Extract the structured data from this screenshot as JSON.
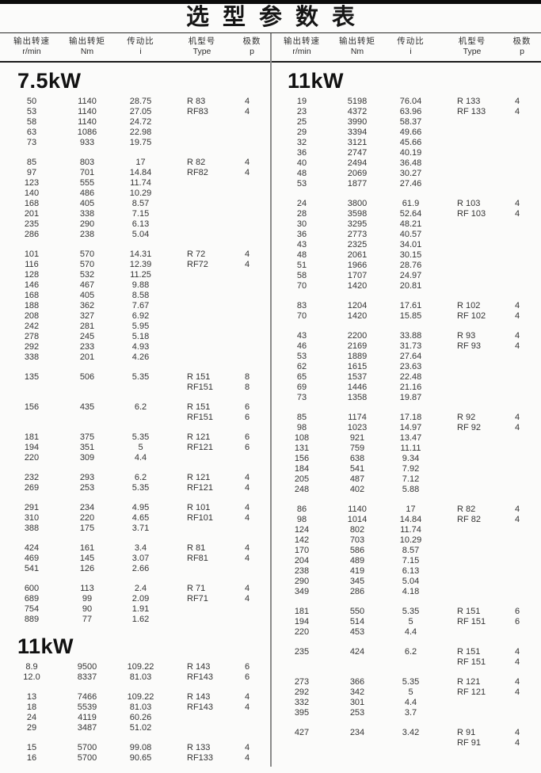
{
  "title": "选型参数表",
  "columns": [
    {
      "key": "speed",
      "label": "输出转速",
      "unit": "r/min"
    },
    {
      "key": "torque",
      "label": "输出转矩",
      "unit": "Nm"
    },
    {
      "key": "ratio",
      "label": "传动比",
      "unit": "i"
    },
    {
      "key": "type",
      "label": "机型号",
      "unit": "Type"
    },
    {
      "key": "poles",
      "label": "极数",
      "unit": "p"
    }
  ],
  "colors": {
    "line_dark": "#1a1a1a",
    "divider_grey": "#8a8a8a",
    "text": "#333333"
  },
  "left_column": {
    "sections": [
      {
        "heading": "7.5kW",
        "groups": [
          {
            "rows": [
              [
                "50",
                "1140",
                "28.75",
                "R 83",
                "4"
              ],
              [
                "53",
                "1140",
                "27.05",
                "RF83",
                "4"
              ],
              [
                "58",
                "1140",
                "24.72",
                "",
                ""
              ],
              [
                "63",
                "1086",
                "22.98",
                "",
                ""
              ],
              [
                "73",
                "933",
                "19.75",
                "",
                ""
              ]
            ]
          },
          {
            "rows": [
              [
                "85",
                "803",
                "17",
                "R 82",
                "4"
              ],
              [
                "97",
                "701",
                "14.84",
                "RF82",
                "4"
              ],
              [
                "123",
                "555",
                "11.74",
                "",
                ""
              ],
              [
                "140",
                "486",
                "10.29",
                "",
                ""
              ],
              [
                "168",
                "405",
                "8.57",
                "",
                ""
              ],
              [
                "201",
                "338",
                "7.15",
                "",
                ""
              ],
              [
                "235",
                "290",
                "6.13",
                "",
                ""
              ],
              [
                "286",
                "238",
                "5.04",
                "",
                ""
              ]
            ]
          },
          {
            "rows": [
              [
                "101",
                "570",
                "14.31",
                "R 72",
                "4"
              ],
              [
                "116",
                "570",
                "12.39",
                "RF72",
                "4"
              ],
              [
                "128",
                "532",
                "11.25",
                "",
                ""
              ],
              [
                "146",
                "467",
                "9.88",
                "",
                ""
              ],
              [
                "168",
                "405",
                "8.58",
                "",
                ""
              ],
              [
                "188",
                "362",
                "7.67",
                "",
                ""
              ],
              [
                "208",
                "327",
                "6.92",
                "",
                ""
              ],
              [
                "242",
                "281",
                "5.95",
                "",
                ""
              ],
              [
                "278",
                "245",
                "5.18",
                "",
                ""
              ],
              [
                "292",
                "233",
                "4.93",
                "",
                ""
              ],
              [
                "338",
                "201",
                "4.26",
                "",
                ""
              ]
            ]
          },
          {
            "rows": [
              [
                "135",
                "506",
                "5.35",
                "R 151",
                "8"
              ],
              [
                "",
                "",
                "",
                "RF151",
                "8"
              ]
            ]
          },
          {
            "rows": [
              [
                "156",
                "435",
                "6.2",
                "R 151",
                "6"
              ],
              [
                "",
                "",
                "",
                "RF151",
                "6"
              ]
            ]
          },
          {
            "rows": [
              [
                "181",
                "375",
                "5.35",
                "R 121",
                "6"
              ],
              [
                "194",
                "351",
                "5",
                "RF121",
                "6"
              ],
              [
                "220",
                "309",
                "4.4",
                "",
                ""
              ]
            ]
          },
          {
            "rows": [
              [
                "232",
                "293",
                "6.2",
                "R 121",
                "4"
              ],
              [
                "269",
                "253",
                "5.35",
                "RF121",
                "4"
              ]
            ]
          },
          {
            "rows": [
              [
                "291",
                "234",
                "4.95",
                "R 101",
                "4"
              ],
              [
                "310",
                "220",
                "4.65",
                "RF101",
                "4"
              ],
              [
                "388",
                "175",
                "3.71",
                "",
                ""
              ]
            ]
          },
          {
            "rows": [
              [
                "424",
                "161",
                "3.4",
                "R 81",
                "4"
              ],
              [
                "469",
                "145",
                "3.07",
                "RF81",
                "4"
              ],
              [
                "541",
                "126",
                "2.66",
                "",
                ""
              ]
            ]
          },
          {
            "rows": [
              [
                "600",
                "113",
                "2.4",
                "R 71",
                "4"
              ],
              [
                "689",
                "99",
                "2.09",
                "RF71",
                "4"
              ],
              [
                "754",
                "90",
                "1.91",
                "",
                ""
              ],
              [
                "889",
                "77",
                "1.62",
                "",
                ""
              ]
            ]
          }
        ]
      },
      {
        "heading": "11kW",
        "groups": [
          {
            "rows": [
              [
                "8.9",
                "9500",
                "109.22",
                "R 143",
                "6"
              ],
              [
                "12.0",
                "8337",
                "81.03",
                "RF143",
                "6"
              ]
            ]
          },
          {
            "rows": [
              [
                "13",
                "7466",
                "109.22",
                "R 143",
                "4"
              ],
              [
                "18",
                "5539",
                "81.03",
                "RF143",
                "4"
              ],
              [
                "24",
                "4119",
                "60.26",
                "",
                ""
              ],
              [
                "29",
                "3487",
                "51.02",
                "",
                ""
              ]
            ]
          },
          {
            "rows": [
              [
                "15",
                "5700",
                "99.08",
                "R 133",
                "4"
              ],
              [
                "16",
                "5700",
                "90.65",
                "RF133",
                "4"
              ]
            ]
          }
        ]
      }
    ]
  },
  "right_column": {
    "sections": [
      {
        "heading": "11kW",
        "groups": [
          {
            "rows": [
              [
                "19",
                "5198",
                "76.04",
                "R 133",
                "4"
              ],
              [
                "23",
                "4372",
                "63.96",
                "RF 133",
                "4"
              ],
              [
                "25",
                "3990",
                "58.37",
                "",
                ""
              ],
              [
                "29",
                "3394",
                "49.66",
                "",
                ""
              ],
              [
                "32",
                "3121",
                "45.66",
                "",
                ""
              ],
              [
                "36",
                "2747",
                "40.19",
                "",
                ""
              ],
              [
                "40",
                "2494",
                "36.48",
                "",
                ""
              ],
              [
                "48",
                "2069",
                "30.27",
                "",
                ""
              ],
              [
                "53",
                "1877",
                "27.46",
                "",
                ""
              ]
            ]
          },
          {
            "rows": [
              [
                "24",
                "3800",
                "61.9",
                "R 103",
                "4"
              ],
              [
                "28",
                "3598",
                "52.64",
                "RF 103",
                "4"
              ],
              [
                "30",
                "3295",
                "48.21",
                "",
                ""
              ],
              [
                "36",
                "2773",
                "40.57",
                "",
                ""
              ],
              [
                "43",
                "2325",
                "34.01",
                "",
                ""
              ],
              [
                "48",
                "2061",
                "30.15",
                "",
                ""
              ],
              [
                "51",
                "1966",
                "28.76",
                "",
                ""
              ],
              [
                "58",
                "1707",
                "24.97",
                "",
                ""
              ],
              [
                "70",
                "1420",
                "20.81",
                "",
                ""
              ]
            ]
          },
          {
            "rows": [
              [
                "83",
                "1204",
                "17.61",
                "R 102",
                "4"
              ],
              [
                "70",
                "1420",
                "15.85",
                "RF 102",
                "4"
              ]
            ]
          },
          {
            "rows": [
              [
                "43",
                "2200",
                "33.88",
                "R 93",
                "4"
              ],
              [
                "46",
                "2169",
                "31.73",
                "RF 93",
                "4"
              ],
              [
                "53",
                "1889",
                "27.64",
                "",
                ""
              ],
              [
                "62",
                "1615",
                "23.63",
                "",
                ""
              ],
              [
                "65",
                "1537",
                "22.48",
                "",
                ""
              ],
              [
                "69",
                "1446",
                "21.16",
                "",
                ""
              ],
              [
                "73",
                "1358",
                "19.87",
                "",
                ""
              ]
            ]
          },
          {
            "rows": [
              [
                "85",
                "1174",
                "17.18",
                "R 92",
                "4"
              ],
              [
                "98",
                "1023",
                "14.97",
                "RF 92",
                "4"
              ],
              [
                "108",
                "921",
                "13.47",
                "",
                ""
              ],
              [
                "131",
                "759",
                "11.11",
                "",
                ""
              ],
              [
                "156",
                "638",
                "9.34",
                "",
                ""
              ],
              [
                "184",
                "541",
                "7.92",
                "",
                ""
              ],
              [
                "205",
                "487",
                "7.12",
                "",
                ""
              ],
              [
                "248",
                "402",
                "5.88",
                "",
                ""
              ]
            ]
          },
          {
            "rows": [
              [
                "86",
                "1140",
                "17",
                "R 82",
                "4"
              ],
              [
                "98",
                "1014",
                "14.84",
                "RF 82",
                "4"
              ],
              [
                "124",
                "802",
                "11.74",
                "",
                ""
              ],
              [
                "142",
                "703",
                "10.29",
                "",
                ""
              ],
              [
                "170",
                "586",
                "8.57",
                "",
                ""
              ],
              [
                "204",
                "489",
                "7.15",
                "",
                ""
              ],
              [
                "238",
                "419",
                "6.13",
                "",
                ""
              ],
              [
                "290",
                "345",
                "5.04",
                "",
                ""
              ],
              [
                "349",
                "286",
                "4.18",
                "",
                ""
              ]
            ]
          },
          {
            "rows": [
              [
                "181",
                "550",
                "5.35",
                "R 151",
                "6"
              ],
              [
                "194",
                "514",
                "5",
                "RF 151",
                "6"
              ],
              [
                "220",
                "453",
                "4.4",
                "",
                ""
              ]
            ]
          },
          {
            "rows": [
              [
                "235",
                "424",
                "6.2",
                "R 151",
                "4"
              ],
              [
                "",
                "",
                "",
                "RF 151",
                "4"
              ]
            ]
          },
          {
            "rows": [
              [
                "273",
                "366",
                "5.35",
                "R 121",
                "4"
              ],
              [
                "292",
                "342",
                "5",
                "RF 121",
                "4"
              ],
              [
                "332",
                "301",
                "4.4",
                "",
                ""
              ],
              [
                "395",
                "253",
                "3.7",
                "",
                ""
              ]
            ]
          },
          {
            "rows": [
              [
                "427",
                "234",
                "3.42",
                "R 91",
                "4"
              ],
              [
                "",
                "",
                "",
                "RF 91",
                "4"
              ]
            ]
          }
        ]
      }
    ]
  }
}
